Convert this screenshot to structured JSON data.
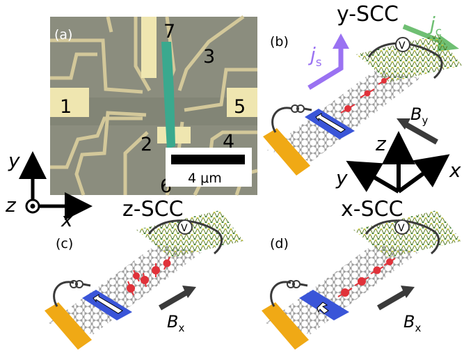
{
  "micrograph": {
    "panel_label": "(a)",
    "contacts": [
      "1",
      "2",
      "3",
      "4",
      "5",
      "6",
      "7"
    ],
    "scale_bar": "4 μm"
  },
  "axes_2d": {
    "y": "y",
    "z": "z",
    "x": "x"
  },
  "panel_b": {
    "label": "(b)",
    "title": "y-SCC",
    "js_main": "j",
    "js_sub": "s",
    "jc_main": "j",
    "jc_sub": "c",
    "field_main": "B",
    "field_sub": "y",
    "voltmeter": "V"
  },
  "axes_3d": {
    "z": "z",
    "y": "y",
    "x": "x"
  },
  "panel_c": {
    "label": "(c)",
    "title": "z-SCC",
    "field_main": "B",
    "field_sub": "x",
    "voltmeter": "V"
  },
  "panel_d": {
    "label": "(d)",
    "title": "x-SCC",
    "field_main": "B",
    "field_sub": "x",
    "voltmeter": "V"
  },
  "colors": {
    "gold": "#f0a915",
    "magnet": "#3a55d8",
    "spin": "#e0323a",
    "js_arrow": "#9a72f2",
    "jc_arrow": "#6fbf73",
    "wire": "#3a3a3a"
  }
}
